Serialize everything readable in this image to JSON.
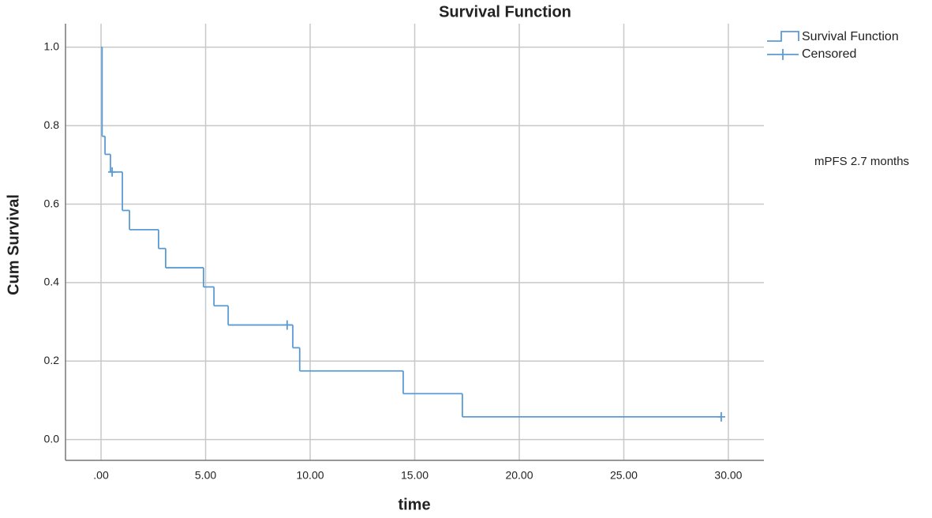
{
  "chart_data": {
    "type": "step",
    "title": "Survival Function",
    "x_label": "time",
    "y_label": "Cum Survival",
    "annotation": "mPFS 2.7 months",
    "series": [
      {
        "name": "Survival Function",
        "color": "#5b9bd5",
        "marker": "step",
        "x": [
          0,
          0.05,
          0.19,
          0.45,
          1.02,
          1.36,
          2.75,
          3.09,
          4.9,
          5.4,
          6.08,
          9.17,
          9.5,
          14.45,
          17.28,
          29.66
        ],
        "values": [
          1.0,
          0.773,
          0.727,
          0.682,
          0.584,
          0.535,
          0.487,
          0.438,
          0.389,
          0.341,
          0.292,
          0.234,
          0.175,
          0.117,
          0.058,
          0.058
        ]
      },
      {
        "name": "Censored",
        "color": "#5b9bd5",
        "marker": "plus",
        "x": [
          0.53,
          8.9,
          29.66
        ],
        "values": [
          0.682,
          0.292,
          0.058
        ]
      }
    ],
    "xlim": [
      -1.7,
      31.7
    ],
    "xticks": [
      {
        "value": 0,
        "label": ".00"
      },
      {
        "value": 5,
        "label": "5.00"
      },
      {
        "value": 10,
        "label": "10.00"
      },
      {
        "value": 15,
        "label": "15.00"
      },
      {
        "value": 20,
        "label": "20.00"
      },
      {
        "value": 25,
        "label": "25.00"
      },
      {
        "value": 30,
        "label": "30.00"
      }
    ],
    "ylim": [
      -0.053,
      1.06
    ],
    "yticks": [
      {
        "value": 0,
        "label": "0.0"
      },
      0.2,
      0.4,
      0.6,
      0.8,
      {
        "value": 1,
        "label": "1.0"
      }
    ],
    "grid": true,
    "legend_position": "top-right"
  }
}
